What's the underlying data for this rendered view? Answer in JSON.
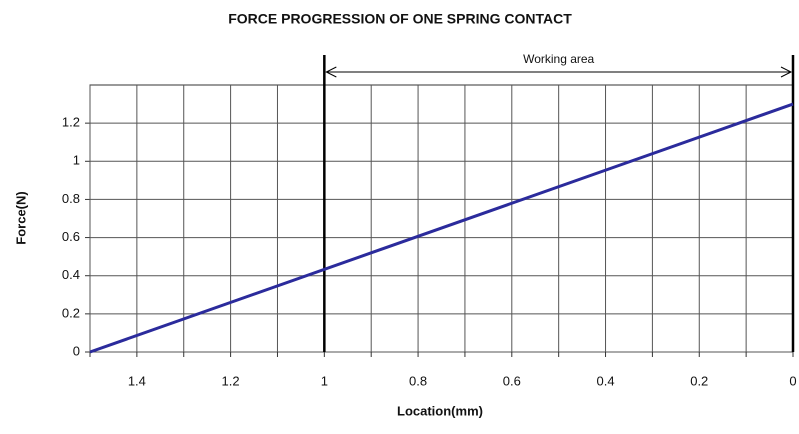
{
  "chart_data": {
    "type": "line",
    "title": "FORCE PROGRESSION OF ONE SPRING CONTACT",
    "x_label": "Location(mm)",
    "y_label": "Force(N)",
    "x": [
      1.5,
      0
    ],
    "series": [
      {
        "name": "Force",
        "color": "#2b2b9c",
        "values": [
          0,
          1.3
        ]
      }
    ],
    "xlim": [
      1.5,
      0
    ],
    "ylim": [
      0,
      1.4
    ],
    "xticks": [
      1.4,
      1.2,
      1,
      0.8,
      0.6,
      0.4,
      0.2,
      0
    ],
    "xminor_ticks": [
      1.5,
      1.3,
      1.1,
      0.9,
      0.7,
      0.5,
      0.3,
      0.1
    ],
    "yticks": [
      0,
      0.2,
      0.4,
      0.6,
      0.8,
      1,
      1.2
    ],
    "grid": true,
    "annotation": {
      "text": "Working area",
      "x_range": [
        1,
        0
      ]
    }
  }
}
